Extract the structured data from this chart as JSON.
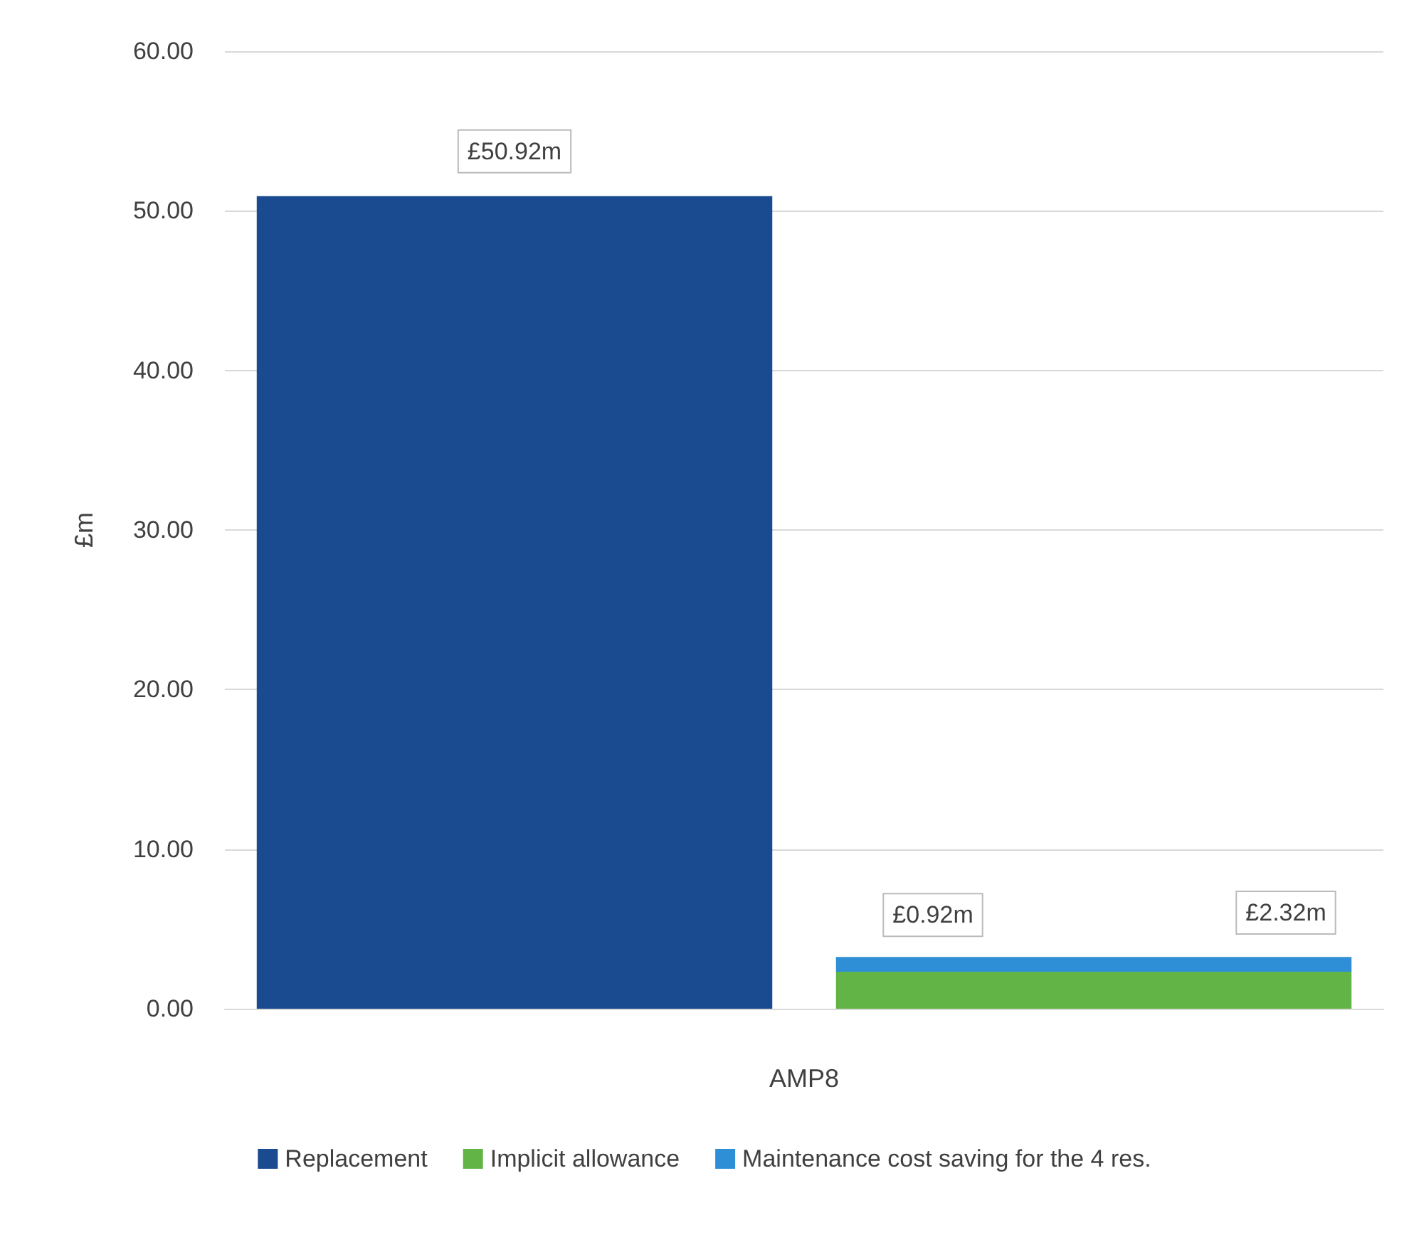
{
  "chart_data": {
    "type": "bar",
    "ylabel": "£m",
    "xlabel": "AMP8",
    "categories": [
      null,
      null
    ],
    "series": [
      {
        "name": "Replacement",
        "color": "#1a4a8f",
        "values": [
          50.92,
          null
        ],
        "value_labels": [
          "£50.92m",
          null
        ]
      },
      {
        "name": "Implicit allowance",
        "color": "#62b446",
        "values": [
          null,
          2.32
        ],
        "value_labels": [
          null,
          "£2.32m"
        ]
      },
      {
        "name": "Maintenance cost saving for the 4 res.",
        "color": "#2e8fd6",
        "values": [
          null,
          0.92
        ],
        "value_labels": [
          null,
          "£0.92m"
        ]
      }
    ],
    "stacked": true,
    "ylim": [
      0,
      60
    ],
    "yticks": [
      {
        "value": 0,
        "label": "0.00"
      },
      {
        "value": 10,
        "label": "10.00"
      },
      {
        "value": 20,
        "label": "20.00"
      },
      {
        "value": 30,
        "label": "30.00"
      },
      {
        "value": 40,
        "label": "40.00"
      },
      {
        "value": 50,
        "label": "50.00"
      },
      {
        "value": 60,
        "label": "60.00"
      }
    ],
    "grid": "y",
    "legend": "bottom"
  }
}
